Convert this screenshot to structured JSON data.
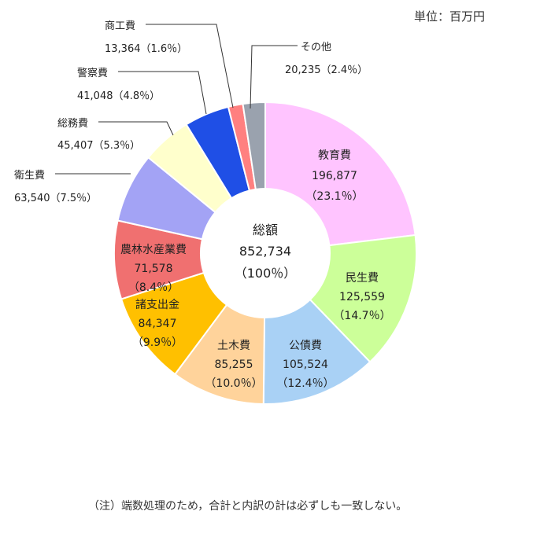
{
  "unit_label": "単位：百万円",
  "note": "（注）端数処理のため，合計と内訳の計は必ずしも一致しない。",
  "chart_data": {
    "type": "pie",
    "center": {
      "label": "総額",
      "value": "852,734",
      "pct": "（100％）"
    },
    "slices": [
      {
        "name": "教育費",
        "value": 196877,
        "value_text": "196,877",
        "pct": "（23.1％）",
        "color": "#FFC4FF"
      },
      {
        "name": "民生費",
        "value": 125559,
        "value_text": "125,559",
        "pct": "（14.7％）",
        "color": "#CCFF99"
      },
      {
        "name": "公債費",
        "value": 105524,
        "value_text": "105,524",
        "pct": "（12.4％）",
        "color": "#A9D1F5"
      },
      {
        "name": "土木費",
        "value": 85255,
        "value_text": "85,255",
        "pct": "（10.0％）",
        "color": "#FFD39B"
      },
      {
        "name": "諸支出金",
        "value": 84347,
        "value_text": "84,347",
        "pct": "（9.9％）",
        "color": "#FFC000"
      },
      {
        "name": "農林水産業費",
        "value": 71578,
        "value_text": "71,578",
        "pct": "（8.4％）",
        "color": "#F07070"
      },
      {
        "name": "衛生費",
        "value": 63540,
        "value_text": "63,540",
        "pct": "（7.5％）",
        "color": "#A3A3F5"
      },
      {
        "name": "総務費",
        "value": 45407,
        "value_text": "45,407",
        "pct": "（5.3％）",
        "color": "#FFFFCC"
      },
      {
        "name": "警察費",
        "value": 41048,
        "value_text": "41,048",
        "pct": "（4.8％）",
        "color": "#1F4FE6"
      },
      {
        "name": "商工費",
        "value": 13364,
        "value_text": "13,364",
        "pct": "（1.6％）",
        "color": "#FF8080"
      },
      {
        "name": "その他",
        "value": 20235,
        "value_text": "20,235",
        "pct": "（2.4％）",
        "color": "#9AA2AE"
      }
    ]
  }
}
